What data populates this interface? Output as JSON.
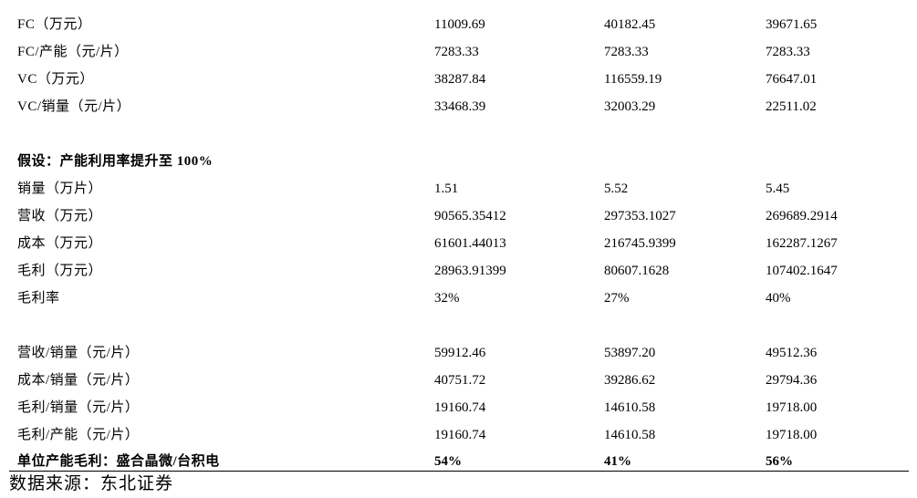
{
  "section1": [
    {
      "label": "FC（万元）",
      "v1": "11009.69",
      "v2": "40182.45",
      "v3": "39671.65"
    },
    {
      "label": "FC/产能（元/片）",
      "v1": "7283.33",
      "v2": "7283.33",
      "v3": "7283.33"
    },
    {
      "label": "VC（万元）",
      "v1": "38287.84",
      "v2": "116559.19",
      "v3": "76647.01"
    },
    {
      "label": "VC/销量（元/片）",
      "v1": "33468.39",
      "v2": "32003.29",
      "v3": "22511.02"
    }
  ],
  "assumption_heading": "假设：产能利用率提升至 100%",
  "section2": [
    {
      "label": "销量（万片）",
      "v1": "1.51",
      "v2": "5.52",
      "v3": "5.45"
    },
    {
      "label": "营收（万元）",
      "v1": "90565.35412",
      "v2": "297353.1027",
      "v3": "269689.2914"
    },
    {
      "label": "成本（万元）",
      "v1": "61601.44013",
      "v2": "216745.9399",
      "v3": "162287.1267"
    },
    {
      "label": "毛利（万元）",
      "v1": "28963.91399",
      "v2": "80607.1628",
      "v3": "107402.1647"
    },
    {
      "label": "毛利率",
      "v1": "32%",
      "v2": "27%",
      "v3": "40%"
    }
  ],
  "section3": [
    {
      "label": "营收/销量（元/片）",
      "v1": "59912.46",
      "v2": "53897.20",
      "v3": "49512.36"
    },
    {
      "label": "成本/销量（元/片）",
      "v1": "40751.72",
      "v2": "39286.62",
      "v3": "29794.36"
    },
    {
      "label": "毛利/销量（元/片）",
      "v1": "19160.74",
      "v2": "14610.58",
      "v3": "19718.00"
    },
    {
      "label": "毛利/产能（元/片）",
      "v1": "19160.74",
      "v2": "14610.58",
      "v3": "19718.00"
    }
  ],
  "summary": {
    "label": "单位产能毛利：盛合晶微/台积电",
    "v1": "54%",
    "v2": "41%",
    "v3": "56%"
  },
  "source": "数据来源：东北证券"
}
